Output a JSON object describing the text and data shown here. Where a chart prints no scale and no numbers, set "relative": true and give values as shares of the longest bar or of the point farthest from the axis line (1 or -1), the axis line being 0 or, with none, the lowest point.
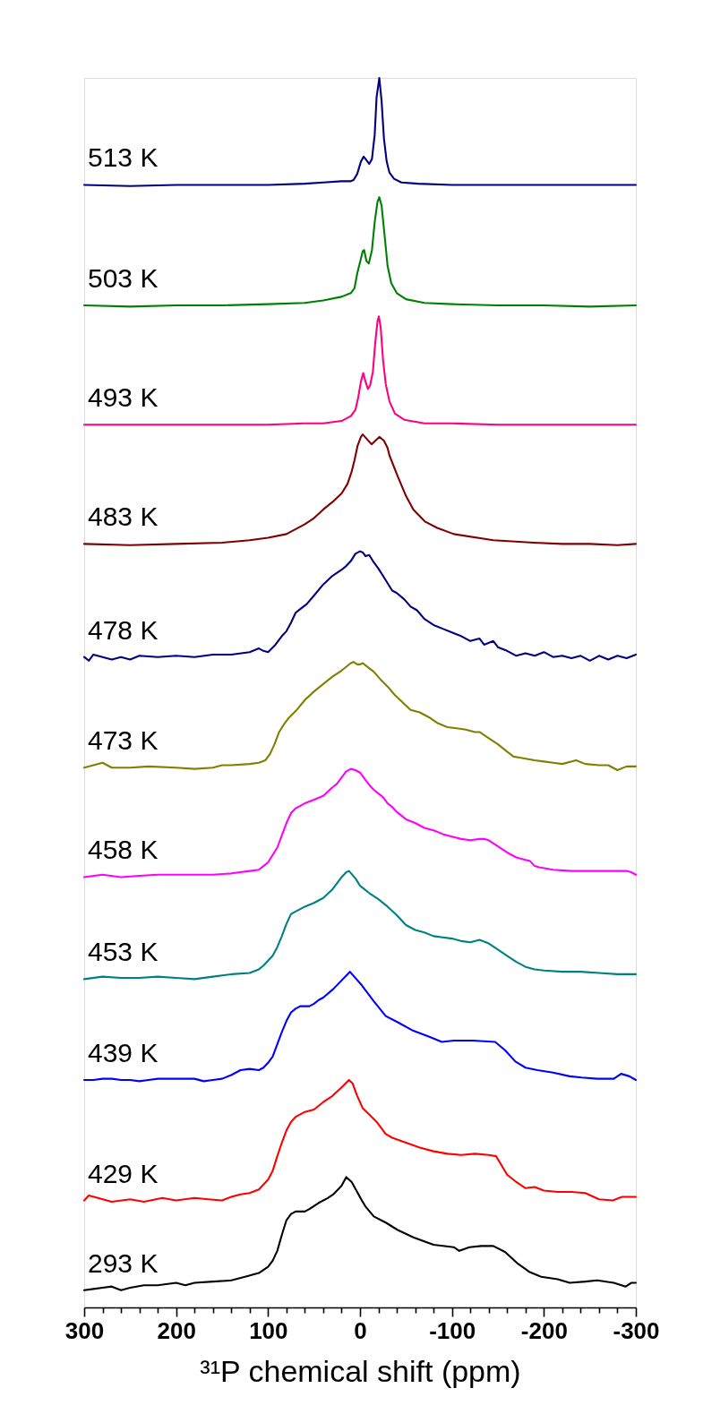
{
  "chart_data": {
    "type": "line",
    "relative": true,
    "xlabel": "³¹P chemical shift (ppm)",
    "xlim": [
      300,
      -300
    ],
    "xticks": [
      300,
      {
        "value": 280,
        "label": null
      },
      {
        "value": 260,
        "label": null
      },
      {
        "value": 240,
        "label": null
      },
      {
        "value": 220,
        "label": null
      },
      200,
      {
        "value": 180,
        "label": null
      },
      {
        "value": 160,
        "label": null
      },
      {
        "value": 140,
        "label": null
      },
      {
        "value": 120,
        "label": null
      },
      100,
      {
        "value": 80,
        "label": null
      },
      {
        "value": 60,
        "label": null
      },
      {
        "value": 40,
        "label": null
      },
      {
        "value": 20,
        "label": null
      },
      0,
      {
        "value": -20,
        "label": null
      },
      {
        "value": -40,
        "label": null
      },
      {
        "value": -60,
        "label": null
      },
      {
        "value": -80,
        "label": null
      },
      -100,
      {
        "value": -120,
        "label": null
      },
      {
        "value": -140,
        "label": null
      },
      {
        "value": -160,
        "label": null
      },
      {
        "value": -180,
        "label": null
      },
      -200,
      {
        "value": -220,
        "label": null
      },
      {
        "value": -240,
        "label": null
      },
      {
        "value": -260,
        "label": null
      },
      {
        "value": -280,
        "label": null
      },
      -300
    ],
    "series": [
      {
        "name": "513 K",
        "color": "#000080",
        "x": [
          300,
          250,
          200,
          150,
          100,
          60,
          40,
          20,
          10,
          7,
          3,
          -1,
          -4,
          -7,
          -10,
          -13,
          -16,
          -18,
          -21,
          -23.5,
          -26,
          -29,
          -32,
          -37,
          -45,
          -63,
          -100,
          -150,
          -200,
          -250,
          -300
        ],
        "values": [
          0.913,
          0.912,
          0.913,
          0.913,
          0.913,
          0.914,
          0.915,
          0.916,
          0.916,
          0.917,
          0.922,
          0.932,
          0.936,
          0.933,
          0.93,
          0.934,
          0.954,
          0.984,
          1.0,
          0.981,
          0.951,
          0.932,
          0.923,
          0.918,
          0.915,
          0.914,
          0.913,
          0.913,
          0.913,
          0.913,
          0.913
        ]
      },
      {
        "name": "503 K",
        "color": "#008000",
        "x": [
          300,
          250,
          200,
          150,
          100,
          60,
          40,
          20,
          10,
          6,
          3,
          0,
          -3,
          -4.5,
          -7,
          -9.6,
          -13,
          -16,
          -19,
          -21,
          -23.5,
          -27,
          -30,
          -34,
          -40,
          -50,
          -70,
          -100,
          -150,
          -200,
          -250,
          -300
        ],
        "values": [
          0.815,
          0.814,
          0.815,
          0.815,
          0.816,
          0.817,
          0.819,
          0.822,
          0.825,
          0.829,
          0.841,
          0.85,
          0.859,
          0.86,
          0.851,
          0.849,
          0.86,
          0.883,
          0.899,
          0.903,
          0.896,
          0.87,
          0.847,
          0.833,
          0.825,
          0.82,
          0.817,
          0.816,
          0.815,
          0.815,
          0.814,
          0.815
        ]
      },
      {
        "name": "493 K",
        "color": "#ff0080",
        "x": [
          300,
          250,
          200,
          150,
          100,
          60,
          40,
          20,
          10,
          5,
          2,
          -1,
          -3.5,
          -6,
          -8.6,
          -11,
          -14,
          -16.5,
          -19,
          -20.5,
          -22.5,
          -25,
          -28,
          -32,
          -38,
          -48,
          -70,
          -100,
          -150,
          -200,
          -250,
          -300
        ],
        "values": [
          0.718,
          0.718,
          0.718,
          0.718,
          0.718,
          0.719,
          0.719,
          0.721,
          0.725,
          0.73,
          0.74,
          0.753,
          0.76,
          0.753,
          0.747,
          0.75,
          0.761,
          0.784,
          0.802,
          0.806,
          0.797,
          0.771,
          0.751,
          0.737,
          0.727,
          0.722,
          0.719,
          0.719,
          0.718,
          0.718,
          0.718,
          0.718
        ]
      },
      {
        "name": "483 K",
        "color": "#800000",
        "x": [
          300,
          250,
          200,
          150,
          120,
          100,
          80,
          60,
          50,
          40,
          30,
          20,
          13.5,
          9,
          6,
          2.6,
          -1,
          -3,
          -12.6,
          -21,
          -26,
          -30,
          -32,
          -41,
          -50,
          -58,
          -71,
          -84,
          -102,
          -145,
          -189,
          -220,
          -250,
          -280,
          -300
        ],
        "values": [
          0.621,
          0.62,
          0.621,
          0.622,
          0.624,
          0.626,
          0.629,
          0.637,
          0.642,
          0.649,
          0.655,
          0.662,
          0.67,
          0.68,
          0.689,
          0.701,
          0.708,
          0.71,
          0.702,
          0.708,
          0.705,
          0.699,
          0.693,
          0.676,
          0.66,
          0.649,
          0.639,
          0.634,
          0.629,
          0.624,
          0.622,
          0.621,
          0.621,
          0.62,
          0.621
        ]
      },
      {
        "name": "478 K",
        "color": "#000080",
        "x": [
          300,
          295,
          290,
          280,
          270,
          260,
          250,
          240,
          220,
          200,
          180,
          160,
          140,
          120,
          110,
          105,
          100,
          92,
          85,
          80,
          75,
          70,
          65,
          58,
          50,
          40,
          30,
          20,
          15,
          10,
          5,
          0,
          -3,
          -6,
          -10,
          -15,
          -20,
          -25,
          -30,
          -35,
          -40,
          -48,
          -55,
          -62,
          -70,
          -80,
          -90,
          -100,
          -110,
          -120,
          -130,
          -135,
          -145,
          -150,
          -160,
          -170,
          -180,
          -190,
          -200,
          -210,
          -220,
          -230,
          -240,
          -250,
          -260,
          -270,
          -280,
          -290,
          -300
        ],
        "values": [
          0.529,
          0.526,
          0.531,
          0.529,
          0.527,
          0.529,
          0.527,
          0.53,
          0.529,
          0.53,
          0.529,
          0.531,
          0.531,
          0.533,
          0.536,
          0.534,
          0.533,
          0.539,
          0.546,
          0.55,
          0.557,
          0.565,
          0.568,
          0.572,
          0.579,
          0.588,
          0.595,
          0.6,
          0.603,
          0.607,
          0.613,
          0.615,
          0.614,
          0.611,
          0.612,
          0.606,
          0.601,
          0.595,
          0.589,
          0.583,
          0.581,
          0.576,
          0.57,
          0.567,
          0.56,
          0.555,
          0.552,
          0.549,
          0.546,
          0.542,
          0.544,
          0.539,
          0.542,
          0.537,
          0.534,
          0.53,
          0.532,
          0.53,
          0.533,
          0.529,
          0.53,
          0.528,
          0.53,
          0.526,
          0.53,
          0.527,
          0.53,
          0.528,
          0.531
        ]
      },
      {
        "name": "473 K",
        "color": "#808000",
        "x": [
          300,
          290,
          280,
          270,
          250,
          230,
          200,
          180,
          160,
          150,
          140,
          120,
          110,
          103,
          98,
          93,
          88,
          83,
          78,
          70,
          60,
          50,
          40,
          30,
          20,
          10,
          7,
          3,
          0,
          -3,
          -8,
          -15,
          -22,
          -30,
          -38,
          -45,
          -55,
          -65,
          -75,
          -85,
          -95,
          -105,
          -115,
          -125,
          -130,
          -140,
          -150,
          -160,
          -167,
          -175,
          -190,
          -200,
          -210,
          -220,
          -235,
          -245,
          -260,
          -270,
          -280,
          -290,
          -300
        ],
        "values": [
          0.439,
          0.441,
          0.443,
          0.439,
          0.439,
          0.44,
          0.439,
          0.438,
          0.439,
          0.441,
          0.441,
          0.442,
          0.443,
          0.445,
          0.45,
          0.458,
          0.468,
          0.474,
          0.479,
          0.485,
          0.494,
          0.501,
          0.507,
          0.513,
          0.518,
          0.524,
          0.525,
          0.523,
          0.523,
          0.524,
          0.521,
          0.517,
          0.511,
          0.505,
          0.498,
          0.493,
          0.486,
          0.484,
          0.48,
          0.475,
          0.472,
          0.471,
          0.47,
          0.468,
          0.468,
          0.463,
          0.458,
          0.452,
          0.448,
          0.447,
          0.445,
          0.444,
          0.443,
          0.442,
          0.445,
          0.442,
          0.441,
          0.441,
          0.437,
          0.44,
          0.44
        ]
      },
      {
        "name": "458 K",
        "color": "#ff00ff",
        "x": [
          300,
          280,
          260,
          240,
          220,
          200,
          180,
          160,
          140,
          120,
          110,
          105,
          100,
          95,
          90,
          85,
          80,
          75,
          70,
          60,
          50,
          40,
          30,
          25,
          20,
          15,
          10,
          5,
          0,
          -5,
          -10,
          -15,
          -20,
          -25,
          -30,
          -35,
          -40,
          -50,
          -60,
          -70,
          -80,
          -90,
          -100,
          -110,
          -120,
          -130,
          -135,
          -140,
          -150,
          -160,
          -170,
          -180,
          -185,
          -190,
          -195,
          -210,
          -230,
          -250,
          -270,
          -290,
          -295,
          -300
        ],
        "values": [
          0.35,
          0.352,
          0.35,
          0.351,
          0.352,
          0.352,
          0.352,
          0.352,
          0.353,
          0.355,
          0.356,
          0.359,
          0.362,
          0.368,
          0.374,
          0.384,
          0.394,
          0.402,
          0.406,
          0.41,
          0.413,
          0.416,
          0.423,
          0.426,
          0.431,
          0.436,
          0.438,
          0.437,
          0.435,
          0.43,
          0.425,
          0.421,
          0.418,
          0.415,
          0.41,
          0.407,
          0.403,
          0.397,
          0.394,
          0.39,
          0.388,
          0.385,
          0.383,
          0.381,
          0.38,
          0.381,
          0.381,
          0.38,
          0.375,
          0.37,
          0.366,
          0.364,
          0.363,
          0.359,
          0.358,
          0.356,
          0.355,
          0.355,
          0.355,
          0.355,
          0.354,
          0.352
        ]
      },
      {
        "name": "453 K",
        "color": "#008080",
        "x": [
          300,
          280,
          260,
          240,
          220,
          200,
          180,
          160,
          140,
          120,
          110,
          105,
          100,
          95,
          90,
          85,
          80,
          75,
          70,
          60,
          50,
          40,
          30,
          25,
          20,
          15,
          12,
          5,
          0,
          -5,
          -10,
          -20,
          -30,
          -40,
          -50,
          -60,
          -70,
          -80,
          -90,
          -100,
          -110,
          -120,
          -130,
          -140,
          -150,
          -160,
          -170,
          -180,
          -190,
          -200,
          -220,
          -240,
          -260,
          -280,
          -300
        ],
        "values": [
          0.267,
          0.269,
          0.268,
          0.268,
          0.269,
          0.268,
          0.267,
          0.269,
          0.271,
          0.272,
          0.275,
          0.278,
          0.282,
          0.286,
          0.293,
          0.302,
          0.312,
          0.32,
          0.322,
          0.326,
          0.329,
          0.333,
          0.34,
          0.345,
          0.35,
          0.354,
          0.355,
          0.349,
          0.343,
          0.34,
          0.337,
          0.332,
          0.326,
          0.319,
          0.311,
          0.307,
          0.305,
          0.302,
          0.301,
          0.3,
          0.298,
          0.297,
          0.299,
          0.296,
          0.291,
          0.286,
          0.281,
          0.277,
          0.275,
          0.274,
          0.273,
          0.273,
          0.272,
          0.271,
          0.271
        ]
      },
      {
        "name": "439 K",
        "color": "#0000ff",
        "x": [
          300,
          290,
          280,
          270,
          260,
          250,
          240,
          230,
          220,
          200,
          180,
          170,
          160,
          150,
          140,
          130,
          120,
          110,
          105,
          100,
          95,
          90,
          85,
          80,
          75,
          70,
          65,
          60,
          55,
          50,
          45,
          40,
          29,
          11,
          -2,
          -15,
          -28,
          -41,
          -58,
          -76,
          -89,
          -102,
          -123,
          -147,
          -158,
          -169,
          -180,
          -193,
          -210,
          -228,
          -241,
          -258,
          -276,
          -284,
          -293,
          -300
        ],
        "values": [
          0.185,
          0.185,
          0.186,
          0.186,
          0.185,
          0.185,
          0.184,
          0.185,
          0.186,
          0.186,
          0.186,
          0.184,
          0.185,
          0.186,
          0.189,
          0.193,
          0.194,
          0.193,
          0.195,
          0.199,
          0.204,
          0.214,
          0.224,
          0.233,
          0.24,
          0.243,
          0.245,
          0.245,
          0.245,
          0.247,
          0.25,
          0.252,
          0.259,
          0.273,
          0.262,
          0.249,
          0.237,
          0.232,
          0.225,
          0.22,
          0.216,
          0.217,
          0.217,
          0.216,
          0.209,
          0.2,
          0.195,
          0.193,
          0.191,
          0.188,
          0.187,
          0.186,
          0.186,
          0.19,
          0.188,
          0.185
        ]
      },
      {
        "name": "429 K",
        "color": "#ff0000",
        "x": [
          300,
          295,
          285,
          270,
          250,
          235,
          215,
          200,
          180,
          165,
          150,
          140,
          130,
          120,
          110,
          100,
          95,
          90,
          85,
          80,
          75,
          70,
          60,
          50,
          40,
          30,
          20,
          12,
          8,
          3,
          -3,
          -10,
          -18,
          -28,
          -35,
          -50,
          -65,
          -80,
          -95,
          -110,
          -125,
          -140,
          -148,
          -152,
          -160,
          -170,
          -180,
          -190,
          -200,
          -215,
          -230,
          -245,
          -260,
          -275,
          -285,
          -300
        ],
        "values": [
          0.087,
          0.091,
          0.089,
          0.086,
          0.088,
          0.086,
          0.089,
          0.087,
          0.089,
          0.088,
          0.087,
          0.09,
          0.092,
          0.093,
          0.096,
          0.104,
          0.111,
          0.123,
          0.134,
          0.144,
          0.151,
          0.155,
          0.159,
          0.161,
          0.167,
          0.172,
          0.179,
          0.185,
          0.182,
          0.172,
          0.162,
          0.157,
          0.151,
          0.141,
          0.138,
          0.134,
          0.13,
          0.127,
          0.125,
          0.124,
          0.125,
          0.124,
          0.123,
          0.118,
          0.108,
          0.102,
          0.097,
          0.098,
          0.095,
          0.094,
          0.094,
          0.093,
          0.088,
          0.087,
          0.09,
          0.09
        ]
      },
      {
        "name": "293 K",
        "color": "#000000",
        "x": [
          300,
          290,
          280,
          270,
          260,
          250,
          235,
          220,
          200,
          190,
          180,
          160,
          140,
          125,
          110,
          100,
          95,
          90,
          85,
          80,
          75,
          70,
          60,
          55,
          45,
          35,
          29,
          20,
          15,
          9,
          -2,
          -6,
          -15,
          -28,
          -41,
          -58,
          -80,
          -102,
          -108,
          -119,
          -132,
          -145,
          -158,
          -171,
          -184,
          -197,
          -215,
          -228,
          -245,
          -258,
          -276,
          -289,
          -295,
          -300
        ],
        "values": [
          0.014,
          0.015,
          0.016,
          0.017,
          0.014,
          0.016,
          0.018,
          0.018,
          0.02,
          0.018,
          0.02,
          0.021,
          0.022,
          0.025,
          0.028,
          0.033,
          0.038,
          0.046,
          0.059,
          0.071,
          0.076,
          0.078,
          0.078,
          0.08,
          0.085,
          0.089,
          0.092,
          0.099,
          0.106,
          0.102,
          0.087,
          0.082,
          0.074,
          0.069,
          0.063,
          0.057,
          0.051,
          0.049,
          0.046,
          0.049,
          0.05,
          0.05,
          0.045,
          0.036,
          0.029,
          0.025,
          0.023,
          0.02,
          0.021,
          0.022,
          0.02,
          0.017,
          0.02,
          0.02
        ]
      }
    ]
  }
}
